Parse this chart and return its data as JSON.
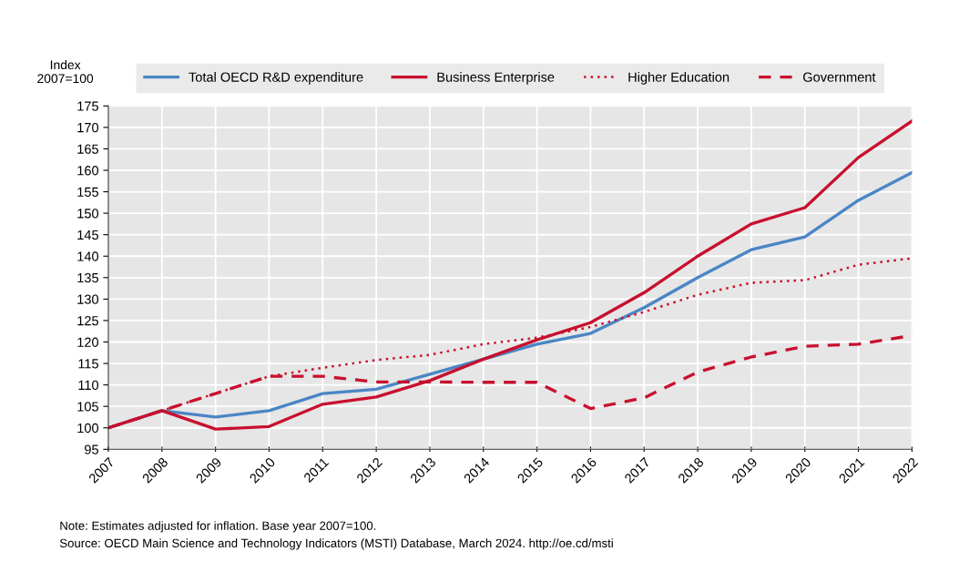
{
  "chart_data": {
    "type": "line",
    "ylabel": "Index\n2007=100",
    "categories": [
      "2007",
      "2008",
      "2009",
      "2010",
      "2011",
      "2012",
      "2013",
      "2014",
      "2015",
      "2016",
      "2017",
      "2018",
      "2019",
      "2020",
      "2021",
      "2022"
    ],
    "series": [
      {
        "name": "Total OECD R&D expenditure",
        "color": "#4a86c5",
        "line_style": "solid",
        "values": [
          100,
          104,
          102.5,
          104,
          108,
          109,
          112.5,
          116,
          119.5,
          122,
          128,
          135,
          141.5,
          144.5,
          153,
          159.5
        ]
      },
      {
        "name": "Business Enterprise",
        "color": "#c8102e",
        "line_style": "solid",
        "values": [
          100,
          104,
          99.7,
          100.3,
          105.5,
          107.2,
          111,
          116,
          120.5,
          124.5,
          131.5,
          140,
          147.5,
          151.3,
          163,
          171.5
        ]
      },
      {
        "name": "Higher Education",
        "color": "#c8102e",
        "line_style": "dotted",
        "values": [
          100,
          104,
          108,
          112,
          114,
          115.8,
          117,
          119.5,
          121,
          123.5,
          127,
          131,
          133.8,
          134.4,
          138,
          139.5
        ]
      },
      {
        "name": "Government",
        "color": "#c8102e",
        "line_style": "dashed",
        "values": [
          100,
          104,
          108,
          112,
          112,
          110.7,
          110.7,
          110.6,
          110.6,
          104.5,
          107,
          113,
          116.5,
          119,
          119.5,
          121.5
        ]
      }
    ],
    "ylim": [
      95,
      175
    ],
    "yticks": [
      95,
      100,
      105,
      110,
      115,
      120,
      125,
      130,
      135,
      140,
      145,
      150,
      155,
      160,
      165,
      170,
      175
    ],
    "grid": true,
    "legend": "top",
    "marker": "none",
    "annotations": [
      "Note: Estimates adjusted for inflation. Base year 2007=100.",
      "Source: OECD Main Science and Technology Indicators (MSTI) Database, March 2024. http://oe.cd/msti"
    ]
  }
}
